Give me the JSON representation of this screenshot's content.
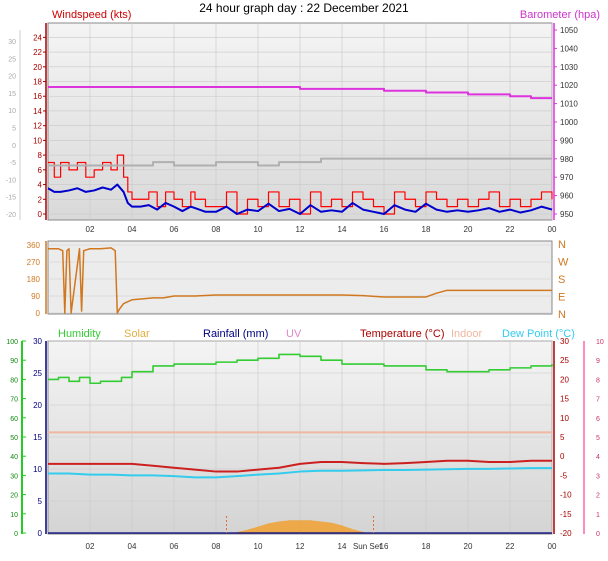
{
  "title": "24 hour graph day : 22 December 2021",
  "x_ticks": [
    "02",
    "04",
    "06",
    "08",
    "10",
    "12",
    "14",
    "16",
    "18",
    "20",
    "22",
    "00"
  ],
  "x_ticks_bottom": [
    "02",
    "04",
    "06",
    "08",
    "10",
    "12",
    "14",
    "Sun Set",
    "16",
    "18",
    "20",
    "22",
    "00"
  ],
  "colors": {
    "wind": "#e00000",
    "gust": "#ff0000",
    "wind_avg": "#0000cc",
    "baro": "#dd33dd",
    "grey": "#b0b0b0",
    "dir": "#d07820",
    "humidity": "#33cc33",
    "solar": "#f0a030",
    "rain": "#000080",
    "uv": "#dd88cc",
    "temp": "#cc2020",
    "indoor": "#f0b8a0",
    "dew": "#33ccee",
    "green_axis": "#22cc22",
    "pink_axis": "#ff66aa",
    "dark_red": "#aa0000"
  },
  "chart_data": [
    {
      "type": "line",
      "panel": "wind-barometer",
      "legend": {
        "left": "Windspeed (kts)",
        "right": "Barometer (hpa)"
      },
      "y_left_outer": {
        "ticks": [
          "30",
          "25",
          "20",
          "15",
          "10",
          "5",
          "0",
          "-5",
          "-10",
          "-15",
          "-20"
        ]
      },
      "y_left": {
        "ticks": [
          "24",
          "22",
          "20",
          "18",
          "16",
          "14",
          "12",
          "10",
          "8",
          "6",
          "4",
          "2",
          "0"
        ],
        "range": [
          0,
          25
        ]
      },
      "y_right": {
        "ticks": [
          "1050",
          "1040",
          "1030",
          "1020",
          "1010",
          "1000",
          "990",
          "980",
          "970",
          "960",
          "950"
        ],
        "range": [
          950,
          1050
        ]
      },
      "series": [
        {
          "role": "gust",
          "x": [
            0,
            0.3,
            0.6,
            1.0,
            1.4,
            1.8,
            2.2,
            2.6,
            3.0,
            3.3,
            3.6,
            3.8,
            4.0,
            4.4,
            4.8,
            5.2,
            5.6,
            6.0,
            6.4,
            6.8,
            7.0,
            7.5,
            8.0,
            8.5,
            9.0,
            9.5,
            10.0,
            10.5,
            11.0,
            11.5,
            12.0,
            12.5,
            13.0,
            13.5,
            14.0,
            14.5,
            15.0,
            15.5,
            16.0,
            16.5,
            17.0,
            17.5,
            18.0,
            18.5,
            19.0,
            19.5,
            20.0,
            20.5,
            21.0,
            21.5,
            22.0,
            22.5,
            23.0,
            23.5,
            24.0
          ],
          "y": [
            7,
            5,
            7,
            6,
            7,
            5,
            6,
            7,
            6,
            8,
            5,
            3,
            2,
            2,
            3,
            1,
            3,
            2,
            1,
            3,
            2,
            1,
            1,
            3,
            0,
            2,
            1,
            3,
            1,
            2,
            0,
            3,
            1,
            2,
            1,
            3,
            2,
            1,
            0,
            3,
            2,
            1,
            3,
            2,
            1,
            2,
            1,
            2,
            3,
            1,
            2,
            1,
            2,
            3,
            2
          ]
        },
        {
          "role": "wind",
          "x": [
            0,
            0.3,
            0.6,
            1.0,
            1.4,
            1.8,
            2.2,
            2.6,
            3.0,
            3.3,
            3.6,
            3.8,
            4.0,
            4.4,
            4.8,
            5.2,
            5.6,
            6.0,
            6.4,
            6.8,
            7.0,
            7.5,
            8.0,
            8.5,
            9.0,
            9.5,
            10.0,
            10.5,
            11.0,
            11.5,
            12.0,
            12.5,
            13.0,
            13.5,
            14.0,
            14.5,
            15.0,
            15.5,
            16.0,
            16.5,
            17.0,
            17.5,
            18.0,
            18.5,
            19.0,
            19.5,
            20.0,
            20.5,
            21.0,
            21.5,
            22.0,
            22.5,
            23.0,
            23.5,
            24.0
          ],
          "y": [
            3.5,
            3,
            3,
            3.2,
            3.5,
            3,
            3.2,
            3.6,
            3.3,
            4,
            3,
            1.5,
            1,
            1,
            1.2,
            0.6,
            1.5,
            1,
            0.4,
            1,
            0.8,
            0.3,
            0.3,
            1,
            0,
            0.6,
            0.4,
            1.4,
            0.4,
            0.7,
            0,
            1.2,
            0.3,
            0.5,
            0.3,
            1.5,
            0.6,
            0.3,
            0,
            1.2,
            0.6,
            0.3,
            1.4,
            0.6,
            0.3,
            0.5,
            0.3,
            0.5,
            0.8,
            0.3,
            0.6,
            0.2,
            0.5,
            1,
            0.6
          ]
        },
        {
          "role": "baro",
          "x": [
            0,
            2,
            4,
            6,
            8,
            10,
            12,
            14,
            16,
            18,
            20,
            22,
            23,
            24
          ],
          "y": [
            1019,
            1019,
            1019,
            1019,
            1019,
            1019,
            1018,
            1018,
            1017,
            1016,
            1015,
            1014,
            1013,
            1013
          ]
        },
        {
          "role": "grey",
          "x": [
            0,
            1,
            2,
            3,
            4,
            5,
            6,
            7,
            8,
            9,
            10,
            11,
            12,
            13,
            14,
            15,
            16,
            17,
            18,
            19,
            20,
            21,
            22,
            23,
            24
          ],
          "y": [
            -6,
            -6,
            -6,
            -6,
            -6,
            -5,
            -6,
            -6,
            -5,
            -5,
            -6,
            -5,
            -5,
            -4,
            -4,
            -4,
            -4,
            -4,
            -4,
            -4,
            -4,
            -4,
            -4,
            -4,
            -4
          ]
        }
      ]
    },
    {
      "type": "line",
      "panel": "wind-direction",
      "y_left": {
        "ticks": [
          "360",
          "270",
          "180",
          "90",
          "0"
        ],
        "range": [
          0,
          360
        ]
      },
      "y_right": {
        "ticks": [
          "N",
          "W",
          "S",
          "E",
          "N"
        ]
      },
      "series": [
        {
          "role": "dir",
          "x": [
            0,
            0.5,
            0.7,
            0.8,
            0.9,
            1.0,
            1.1,
            1.5,
            1.6,
            1.7,
            2.0,
            2.5,
            3.0,
            3.2,
            3.3,
            3.4,
            3.6,
            4.0,
            4.5,
            5.0,
            5.5,
            6.0,
            7.0,
            8.0,
            10.0,
            12.0,
            14.0,
            15.0,
            16.0,
            17.0,
            18.0,
            18.5,
            19.0,
            20.0,
            22.0,
            24.0
          ],
          "y": [
            340,
            340,
            330,
            0,
            330,
            340,
            0,
            340,
            10,
            330,
            340,
            340,
            345,
            330,
            0,
            20,
            50,
            70,
            75,
            80,
            80,
            90,
            90,
            95,
            95,
            95,
            95,
            92,
            85,
            85,
            85,
            105,
            120,
            120,
            120,
            120
          ]
        }
      ]
    },
    {
      "type": "line",
      "panel": "temperature-humidity",
      "legend": [
        "Humidity",
        "Solar",
        "Rainfall (mm)",
        "UV",
        "Temperature (°C)",
        "Indoor",
        "Dew Point (°C)"
      ],
      "y_outer_left": {
        "ticks": [
          "100",
          "90",
          "80",
          "70",
          "60",
          "50",
          "40",
          "30",
          "20",
          "10",
          "0"
        ],
        "range": [
          0,
          100
        ]
      },
      "y_left": {
        "ticks": [
          "30",
          "25",
          "20",
          "15",
          "10",
          "5",
          "0"
        ],
        "range": [
          0,
          30
        ]
      },
      "y_right": {
        "ticks": [
          "30",
          "25",
          "20",
          "15",
          "10",
          "5",
          "0",
          "-5",
          "-10",
          "-15",
          "-20"
        ],
        "range": [
          -20,
          30
        ]
      },
      "y_outer_right": {
        "ticks": [
          "10",
          "9",
          "8",
          "7",
          "6",
          "5",
          "4",
          "3",
          "2",
          "1",
          "0"
        ],
        "range": [
          0,
          10
        ]
      },
      "series": [
        {
          "role": "humidity",
          "x": [
            0,
            0.5,
            1,
            1.5,
            2,
            2.5,
            3,
            3.5,
            4,
            4.5,
            5,
            6,
            7,
            8,
            9,
            10,
            11,
            12,
            13,
            14,
            15,
            16,
            17,
            18,
            19,
            20,
            21,
            22,
            23,
            24
          ],
          "y": [
            80,
            81,
            79,
            81,
            78,
            79,
            79,
            81,
            84,
            84,
            87,
            88,
            88,
            89,
            90,
            91,
            93,
            92,
            90,
            88,
            88,
            87,
            87,
            85,
            84,
            84,
            85,
            86,
            87,
            88
          ]
        },
        {
          "role": "temp",
          "x": [
            0,
            1,
            2,
            3,
            4,
            5,
            6,
            7,
            8,
            9,
            10,
            11,
            12,
            13,
            14,
            15,
            16,
            17,
            18,
            19,
            20,
            21,
            22,
            23,
            24
          ],
          "y": [
            -2,
            -2,
            -2,
            -2,
            -2,
            -2.5,
            -3,
            -3.5,
            -4,
            -4,
            -3.5,
            -3,
            -2,
            -1.5,
            -1.5,
            -1.8,
            -2,
            -1.8,
            -1.5,
            -1.2,
            -1.2,
            -1.5,
            -1.5,
            -1.2,
            -1.2
          ]
        },
        {
          "role": "dew",
          "x": [
            0,
            1,
            2,
            3,
            4,
            5,
            6,
            7,
            8,
            9,
            10,
            11,
            12,
            13,
            14,
            15,
            16,
            17,
            18,
            19,
            20,
            21,
            22,
            23,
            24
          ],
          "y": [
            -4.5,
            -4.5,
            -4.8,
            -4.8,
            -5,
            -5,
            -5.2,
            -5.5,
            -5.5,
            -5.2,
            -4.8,
            -4.5,
            -4,
            -3.8,
            -3.8,
            -3.7,
            -3.6,
            -3.6,
            -3.5,
            -3.4,
            -3.3,
            -3.3,
            -3.2,
            -3.1,
            -3.1
          ]
        },
        {
          "role": "indoor",
          "x": [
            0,
            6,
            12,
            18,
            24
          ],
          "y": [
            6.2,
            6.2,
            6.2,
            6.2,
            6.2
          ]
        },
        {
          "role": "solar",
          "x": [
            8.8,
            9.5,
            10,
            10.5,
            11,
            11.5,
            12,
            12.5,
            13,
            13.5,
            14,
            14.5,
            15.2
          ],
          "y": [
            0,
            0.5,
            1,
            1.5,
            1.8,
            2,
            2,
            2,
            1.8,
            1.6,
            1.2,
            0.6,
            0
          ]
        },
        {
          "role": "uv",
          "x": [
            0,
            24
          ],
          "y": [
            0,
            0
          ]
        }
      ]
    }
  ]
}
